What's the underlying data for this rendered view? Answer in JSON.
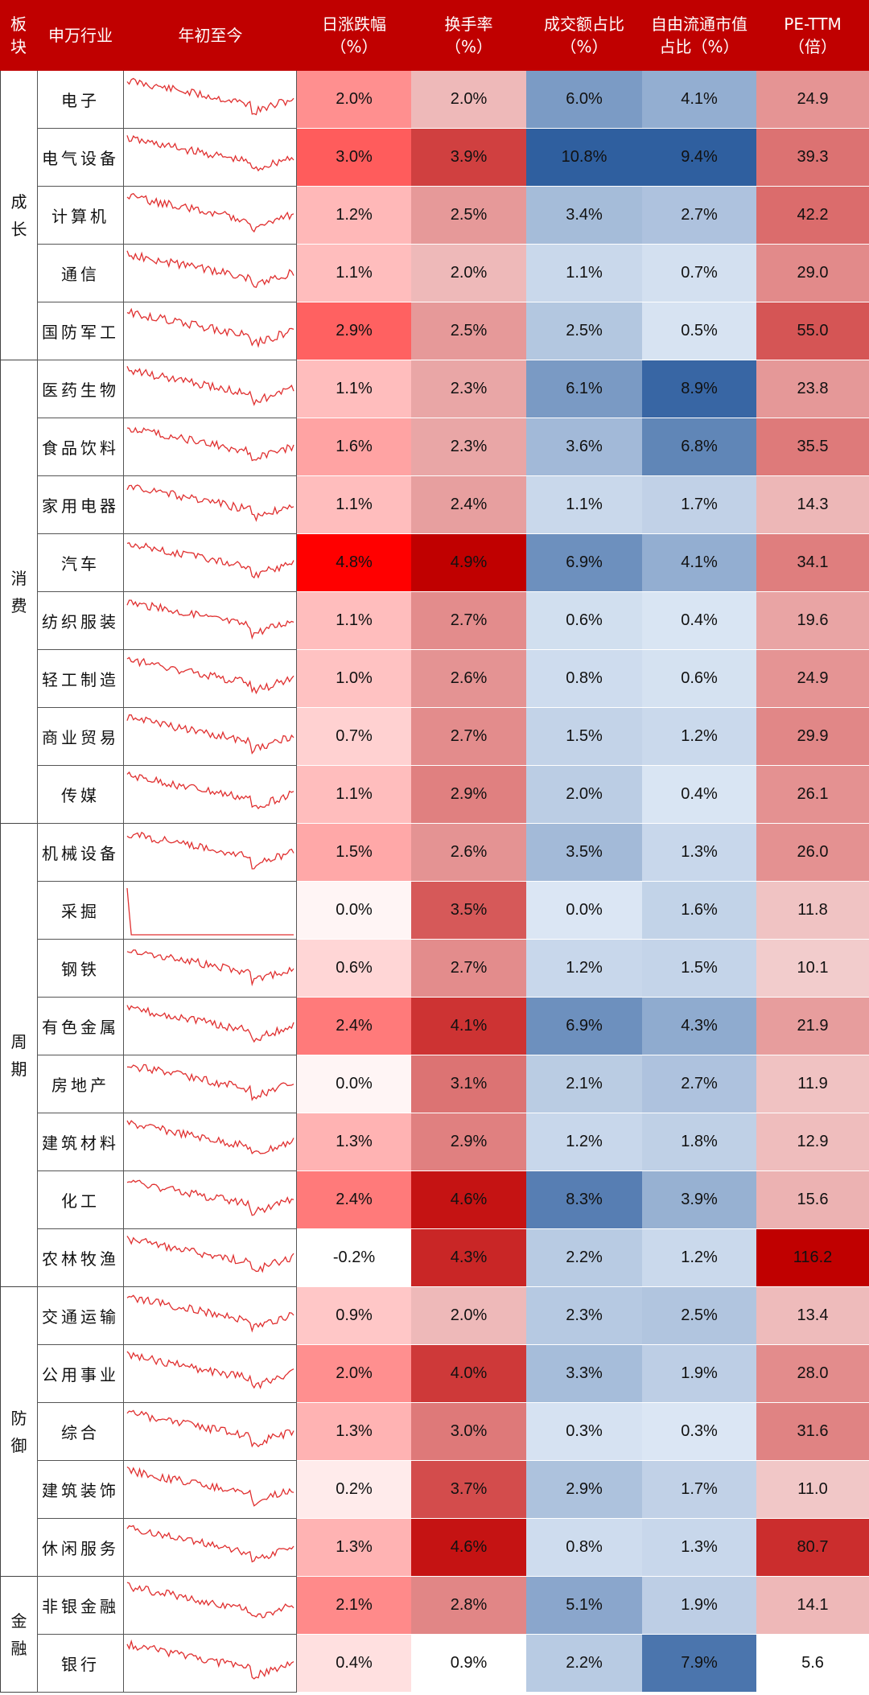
{
  "headers": {
    "block": [
      "板",
      "块"
    ],
    "industry": "申万行业",
    "ytd": "年初至今",
    "metrics": [
      [
        "日涨跌幅",
        "（%）"
      ],
      [
        "换手率",
        "（%）"
      ],
      [
        "成交额占比",
        "（%）"
      ],
      [
        "自由流通市值",
        "占比（%）"
      ],
      [
        "PE-TTM",
        "（倍）"
      ]
    ]
  },
  "colors": {
    "header": "#c00000",
    "red_scale": "#ff0000",
    "blue_scale": "#2f5f9f"
  },
  "groups": [
    {
      "name": [
        "成",
        "长"
      ],
      "rows": 5
    },
    {
      "name": [
        "消",
        "费"
      ],
      "rows": 8
    },
    {
      "name": [
        "周",
        "期"
      ],
      "rows": 8
    },
    {
      "name": [
        "防",
        "御"
      ],
      "rows": 5
    },
    {
      "name": [
        "金",
        "融"
      ],
      "rows": 2
    }
  ],
  "chart_data": {
    "type": "table",
    "columns": [
      "申万行业",
      "日涨跌幅（%）",
      "换手率（%）",
      "成交额占比（%）",
      "自由流通市值占比（%）",
      "PE-TTM（倍）"
    ],
    "rows": [
      {
        "industry": "电子",
        "daily_change": "2.0%",
        "turnover": "2.0%",
        "volume_share": "6.0%",
        "float_cap_share": "4.1%",
        "pe_ttm": "24.9"
      },
      {
        "industry": "电气设备",
        "daily_change": "3.0%",
        "turnover": "3.9%",
        "volume_share": "10.8%",
        "float_cap_share": "9.4%",
        "pe_ttm": "39.3"
      },
      {
        "industry": "计算机",
        "daily_change": "1.2%",
        "turnover": "2.5%",
        "volume_share": "3.4%",
        "float_cap_share": "2.7%",
        "pe_ttm": "42.2"
      },
      {
        "industry": "通信",
        "daily_change": "1.1%",
        "turnover": "2.0%",
        "volume_share": "1.1%",
        "float_cap_share": "0.7%",
        "pe_ttm": "29.0"
      },
      {
        "industry": "国防军工",
        "daily_change": "2.9%",
        "turnover": "2.5%",
        "volume_share": "2.5%",
        "float_cap_share": "0.5%",
        "pe_ttm": "55.0"
      },
      {
        "industry": "医药生物",
        "daily_change": "1.1%",
        "turnover": "2.3%",
        "volume_share": "6.1%",
        "float_cap_share": "8.9%",
        "pe_ttm": "23.8"
      },
      {
        "industry": "食品饮料",
        "daily_change": "1.6%",
        "turnover": "2.3%",
        "volume_share": "3.6%",
        "float_cap_share": "6.8%",
        "pe_ttm": "35.5"
      },
      {
        "industry": "家用电器",
        "daily_change": "1.1%",
        "turnover": "2.4%",
        "volume_share": "1.1%",
        "float_cap_share": "1.7%",
        "pe_ttm": "14.3"
      },
      {
        "industry": "汽车",
        "daily_change": "4.8%",
        "turnover": "4.9%",
        "volume_share": "6.9%",
        "float_cap_share": "4.1%",
        "pe_ttm": "34.1"
      },
      {
        "industry": "纺织服装",
        "daily_change": "1.1%",
        "turnover": "2.7%",
        "volume_share": "0.6%",
        "float_cap_share": "0.4%",
        "pe_ttm": "19.6"
      },
      {
        "industry": "轻工制造",
        "daily_change": "1.0%",
        "turnover": "2.6%",
        "volume_share": "0.8%",
        "float_cap_share": "0.6%",
        "pe_ttm": "24.9"
      },
      {
        "industry": "商业贸易",
        "daily_change": "0.7%",
        "turnover": "2.7%",
        "volume_share": "1.5%",
        "float_cap_share": "1.2%",
        "pe_ttm": "29.9"
      },
      {
        "industry": "传媒",
        "daily_change": "1.1%",
        "turnover": "2.9%",
        "volume_share": "2.0%",
        "float_cap_share": "0.4%",
        "pe_ttm": "26.1"
      },
      {
        "industry": "机械设备",
        "daily_change": "1.5%",
        "turnover": "2.6%",
        "volume_share": "3.5%",
        "float_cap_share": "1.3%",
        "pe_ttm": "26.0"
      },
      {
        "industry": "采掘",
        "daily_change": "0.0%",
        "turnover": "3.5%",
        "volume_share": "0.0%",
        "float_cap_share": "1.6%",
        "pe_ttm": "11.8"
      },
      {
        "industry": "钢铁",
        "daily_change": "0.6%",
        "turnover": "2.7%",
        "volume_share": "1.2%",
        "float_cap_share": "1.5%",
        "pe_ttm": "10.1"
      },
      {
        "industry": "有色金属",
        "daily_change": "2.4%",
        "turnover": "4.1%",
        "volume_share": "6.9%",
        "float_cap_share": "4.3%",
        "pe_ttm": "21.9"
      },
      {
        "industry": "房地产",
        "daily_change": "0.0%",
        "turnover": "3.1%",
        "volume_share": "2.1%",
        "float_cap_share": "2.7%",
        "pe_ttm": "11.9"
      },
      {
        "industry": "建筑材料",
        "daily_change": "1.3%",
        "turnover": "2.9%",
        "volume_share": "1.2%",
        "float_cap_share": "1.8%",
        "pe_ttm": "12.9"
      },
      {
        "industry": "化工",
        "daily_change": "2.4%",
        "turnover": "4.6%",
        "volume_share": "8.3%",
        "float_cap_share": "3.9%",
        "pe_ttm": "15.6"
      },
      {
        "industry": "农林牧渔",
        "daily_change": "-0.2%",
        "turnover": "4.3%",
        "volume_share": "2.2%",
        "float_cap_share": "1.2%",
        "pe_ttm": "116.2"
      },
      {
        "industry": "交通运输",
        "daily_change": "0.9%",
        "turnover": "2.0%",
        "volume_share": "2.3%",
        "float_cap_share": "2.5%",
        "pe_ttm": "13.4"
      },
      {
        "industry": "公用事业",
        "daily_change": "2.0%",
        "turnover": "4.0%",
        "volume_share": "3.3%",
        "float_cap_share": "1.9%",
        "pe_ttm": "28.0"
      },
      {
        "industry": "综合",
        "daily_change": "1.3%",
        "turnover": "3.0%",
        "volume_share": "0.3%",
        "float_cap_share": "0.3%",
        "pe_ttm": "31.6"
      },
      {
        "industry": "建筑装饰",
        "daily_change": "0.2%",
        "turnover": "3.7%",
        "volume_share": "2.9%",
        "float_cap_share": "1.7%",
        "pe_ttm": "11.0"
      },
      {
        "industry": "休闲服务",
        "daily_change": "1.3%",
        "turnover": "4.6%",
        "volume_share": "0.8%",
        "float_cap_share": "1.3%",
        "pe_ttm": "80.7"
      },
      {
        "industry": "非银金融",
        "daily_change": "2.1%",
        "turnover": "2.8%",
        "volume_share": "5.1%",
        "float_cap_share": "1.9%",
        "pe_ttm": "14.1"
      },
      {
        "industry": "银行",
        "daily_change": "0.4%",
        "turnover": "0.9%",
        "volume_share": "2.2%",
        "float_cap_share": "7.9%",
        "pe_ttm": "5.6"
      }
    ],
    "sparkline_style": "line",
    "sparkline_color": "#e03030"
  }
}
